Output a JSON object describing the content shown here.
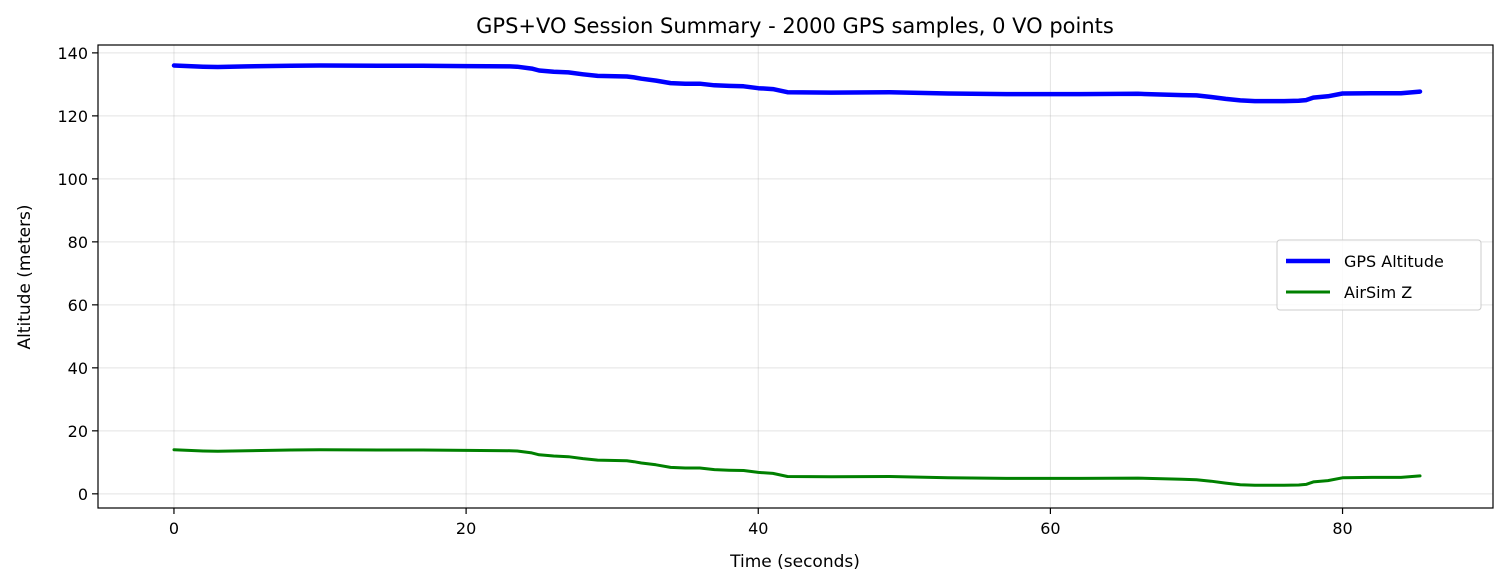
{
  "chart_data": {
    "type": "line",
    "title": "GPS+VO Session Summary - 2000 GPS samples, 0 VO points",
    "xlabel": "Time (seconds)",
    "ylabel": "Altitude (meters)",
    "xlim": [
      -5.2,
      90.3
    ],
    "ylim": [
      -4.5,
      142.5
    ],
    "xticks": [
      0,
      20,
      40,
      60,
      80
    ],
    "yticks": [
      0,
      20,
      40,
      60,
      80,
      100,
      120,
      140
    ],
    "grid": true,
    "legend_position": "center-right",
    "series": [
      {
        "name": "GPS Altitude",
        "color": "#0000ff",
        "x": [
          0,
          1,
          2,
          3,
          5,
          8,
          10,
          14,
          17,
          20,
          23,
          23.5,
          24.5,
          25,
          26,
          27,
          28,
          29,
          31,
          31.5,
          32,
          33,
          34,
          35,
          36,
          37,
          38,
          39,
          40,
          41,
          42,
          45,
          49,
          53,
          57,
          62,
          66,
          69,
          70,
          71,
          72,
          73,
          74,
          76,
          77,
          77.5,
          78,
          79,
          80,
          82,
          84,
          85.3
        ],
        "y": [
          136,
          135.8,
          135.6,
          135.5,
          135.7,
          135.9,
          136,
          135.9,
          135.9,
          135.8,
          135.7,
          135.6,
          135,
          134.4,
          134,
          133.8,
          133.2,
          132.7,
          132.5,
          132.2,
          131.8,
          131.2,
          130.4,
          130.2,
          130.2,
          129.7,
          129.5,
          129.4,
          128.8,
          128.5,
          127.5,
          127.4,
          127.5,
          127.1,
          126.9,
          126.9,
          127,
          126.6,
          126.5,
          126,
          125.4,
          124.9,
          124.7,
          124.7,
          124.8,
          125,
          125.8,
          126.2,
          127.1,
          127.2,
          127.2,
          127.7
        ]
      },
      {
        "name": "AirSim Z",
        "color": "#008000",
        "x": [
          0,
          1,
          2,
          3,
          5,
          8,
          10,
          14,
          17,
          20,
          23,
          23.5,
          24.5,
          25,
          26,
          27,
          28,
          29,
          31,
          31.5,
          32,
          33,
          34,
          35,
          36,
          37,
          38,
          39,
          40,
          41,
          42,
          45,
          49,
          53,
          57,
          62,
          66,
          69,
          70,
          71,
          72,
          73,
          74,
          76,
          77,
          77.5,
          78,
          79,
          80,
          82,
          84,
          85.3
        ],
        "y": [
          14,
          13.8,
          13.6,
          13.5,
          13.7,
          13.9,
          14,
          13.9,
          13.9,
          13.8,
          13.7,
          13.6,
          13,
          12.4,
          12,
          11.8,
          11.2,
          10.7,
          10.5,
          10.2,
          9.8,
          9.2,
          8.4,
          8.2,
          8.2,
          7.7,
          7.5,
          7.4,
          6.8,
          6.5,
          5.5,
          5.4,
          5.5,
          5.1,
          4.9,
          4.9,
          5,
          4.6,
          4.5,
          4,
          3.4,
          2.9,
          2.7,
          2.7,
          2.8,
          3,
          3.8,
          4.2,
          5.1,
          5.2,
          5.2,
          5.7
        ]
      }
    ]
  }
}
